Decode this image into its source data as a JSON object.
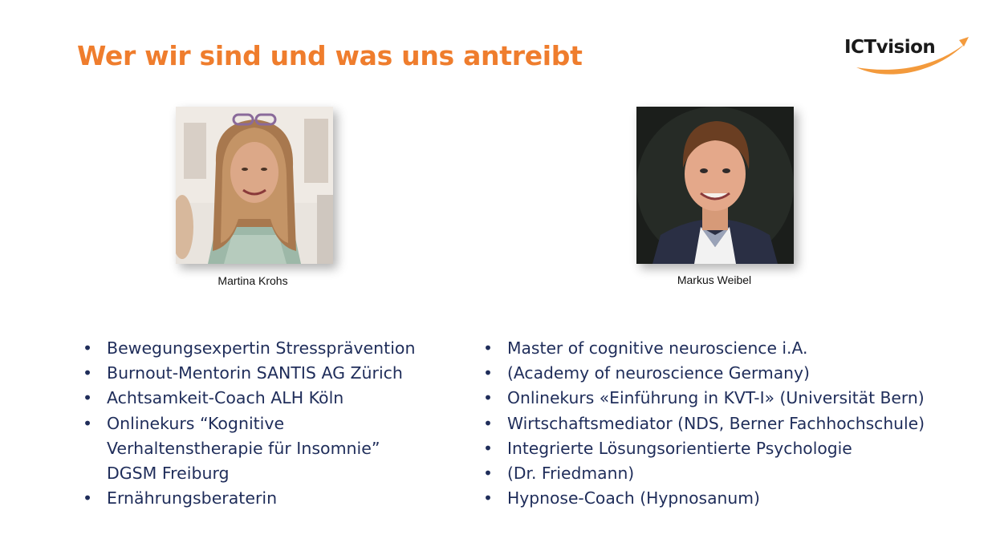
{
  "slide": {
    "title": "Wer wir sind und was uns antreibt",
    "logo_text": "ICTvision",
    "brand_color": "#ef7d2d",
    "text_color": "#1f2d5a"
  },
  "people": [
    {
      "name": "Martina Krohs",
      "qualifications": [
        {
          "lines": [
            "Bewegungsexpertin Stressprävention"
          ]
        },
        {
          "lines": [
            "Burnout-Mentorin SANTIS AG Zürich"
          ]
        },
        {
          "lines": [
            "Achtsamkeit-Coach ALH Köln"
          ]
        },
        {
          "lines": [
            "Onlinekurs “Kognitive",
            "Verhaltenstherapie für Insomnie”",
            "DGSM Freiburg"
          ]
        },
        {
          "lines": [
            "Ernährungsberaterin"
          ]
        }
      ]
    },
    {
      "name": "Markus Weibel",
      "qualifications": [
        {
          "lines": [
            "Master of cognitive neuroscience i.A."
          ]
        },
        {
          "lines": [
            "(Academy of neuroscience Germany)"
          ]
        },
        {
          "lines": [
            "Onlinekurs «Einführung in KVT-I» (Universität Bern)"
          ]
        },
        {
          "lines": [
            "Wirtschaftsmediator (NDS, Berner Fachhochschule)"
          ]
        },
        {
          "lines": [
            "Integrierte Lösungsorientierte Psychologie"
          ]
        },
        {
          "lines": [
            "(Dr. Friedmann)"
          ]
        },
        {
          "lines": [
            "Hypnose-Coach (Hypnosanum)"
          ]
        }
      ]
    }
  ]
}
